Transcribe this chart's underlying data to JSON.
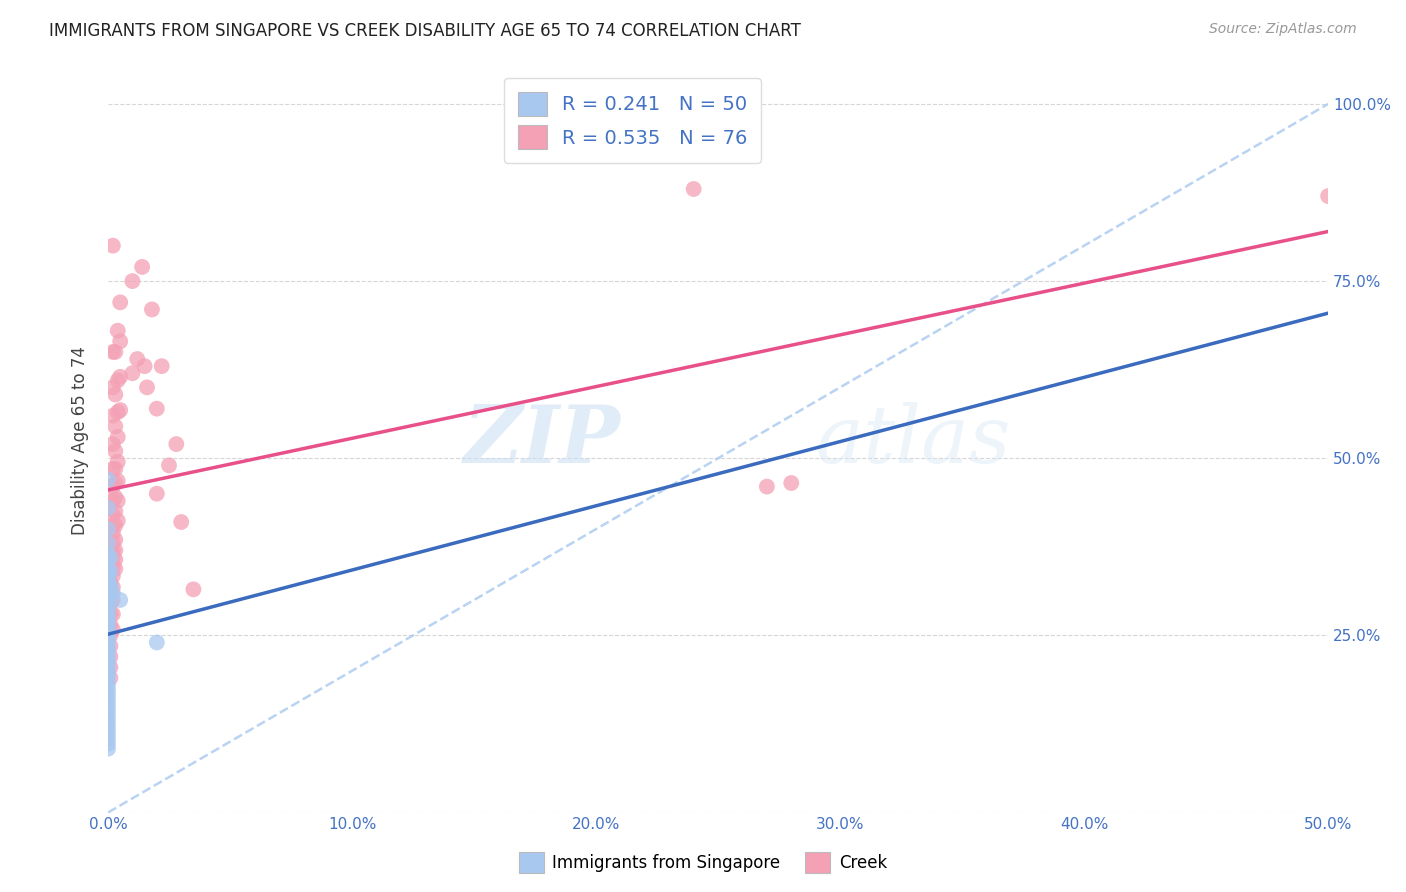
{
  "title": "IMMIGRANTS FROM SINGAPORE VS CREEK DISABILITY AGE 65 TO 74 CORRELATION CHART",
  "source": "Source: ZipAtlas.com",
  "ylabel": "Disability Age 65 to 74",
  "xlim": [
    0.0,
    0.5
  ],
  "ylim": [
    0.0,
    1.05
  ],
  "x_ticks": [
    0.0,
    0.1,
    0.2,
    0.3,
    0.4,
    0.5
  ],
  "x_tick_labels": [
    "0.0%",
    "10.0%",
    "20.0%",
    "30.0%",
    "40.0%",
    "50.0%"
  ],
  "y_ticks": [
    0.0,
    0.25,
    0.5,
    0.75,
    1.0
  ],
  "y_tick_labels": [
    "",
    "25.0%",
    "50.0%",
    "75.0%",
    "100.0%"
  ],
  "singapore_color": "#a8c8f0",
  "creek_color": "#f4a0b5",
  "singapore_line_color": "#3a6bbf",
  "creek_line_color": "#e8508a",
  "dashed_line_color": "#a8c8f0",
  "R_singapore": 0.241,
  "N_singapore": 50,
  "R_creek": 0.535,
  "N_creek": 76,
  "watermark_zip": "ZIP",
  "watermark_atlas": "atlas",
  "legend_x_label": "Immigrants from Singapore",
  "legend_pink_label": "Creek",
  "singapore_points": [
    [
      0.0,
      0.47
    ],
    [
      0.0,
      0.43
    ],
    [
      0.0,
      0.4
    ],
    [
      0.0,
      0.38
    ],
    [
      0.0,
      0.365
    ],
    [
      0.0,
      0.355
    ],
    [
      0.0,
      0.345
    ],
    [
      0.0,
      0.34
    ],
    [
      0.0,
      0.335
    ],
    [
      0.0,
      0.328
    ],
    [
      0.0,
      0.322
    ],
    [
      0.0,
      0.315
    ],
    [
      0.0,
      0.308
    ],
    [
      0.0,
      0.3
    ],
    [
      0.0,
      0.293
    ],
    [
      0.0,
      0.286
    ],
    [
      0.0,
      0.279
    ],
    [
      0.0,
      0.272
    ],
    [
      0.0,
      0.265
    ],
    [
      0.0,
      0.258
    ],
    [
      0.0,
      0.251
    ],
    [
      0.0,
      0.244
    ],
    [
      0.0,
      0.237
    ],
    [
      0.0,
      0.23
    ],
    [
      0.0,
      0.223
    ],
    [
      0.0,
      0.216
    ],
    [
      0.0,
      0.209
    ],
    [
      0.0,
      0.202
    ],
    [
      0.0,
      0.195
    ],
    [
      0.0,
      0.188
    ],
    [
      0.0,
      0.181
    ],
    [
      0.0,
      0.174
    ],
    [
      0.0,
      0.167
    ],
    [
      0.0,
      0.16
    ],
    [
      0.0,
      0.153
    ],
    [
      0.0,
      0.146
    ],
    [
      0.0,
      0.139
    ],
    [
      0.0,
      0.132
    ],
    [
      0.0,
      0.125
    ],
    [
      0.0,
      0.118
    ],
    [
      0.0,
      0.111
    ],
    [
      0.0,
      0.104
    ],
    [
      0.0,
      0.097
    ],
    [
      0.0,
      0.09
    ],
    [
      0.001,
      0.36
    ],
    [
      0.001,
      0.34
    ],
    [
      0.001,
      0.32
    ],
    [
      0.002,
      0.31
    ],
    [
      0.005,
      0.3
    ],
    [
      0.02,
      0.24
    ]
  ],
  "creek_points": [
    [
      0.001,
      0.37
    ],
    [
      0.001,
      0.35
    ],
    [
      0.001,
      0.34
    ],
    [
      0.001,
      0.325
    ],
    [
      0.001,
      0.31
    ],
    [
      0.001,
      0.295
    ],
    [
      0.001,
      0.28
    ],
    [
      0.001,
      0.265
    ],
    [
      0.001,
      0.25
    ],
    [
      0.001,
      0.235
    ],
    [
      0.001,
      0.22
    ],
    [
      0.001,
      0.205
    ],
    [
      0.001,
      0.19
    ],
    [
      0.002,
      0.8
    ],
    [
      0.002,
      0.65
    ],
    [
      0.002,
      0.6
    ],
    [
      0.002,
      0.56
    ],
    [
      0.002,
      0.52
    ],
    [
      0.002,
      0.485
    ],
    [
      0.002,
      0.46
    ],
    [
      0.002,
      0.44
    ],
    [
      0.002,
      0.42
    ],
    [
      0.002,
      0.405
    ],
    [
      0.002,
      0.395
    ],
    [
      0.002,
      0.382
    ],
    [
      0.002,
      0.37
    ],
    [
      0.002,
      0.358
    ],
    [
      0.002,
      0.346
    ],
    [
      0.002,
      0.334
    ],
    [
      0.002,
      0.318
    ],
    [
      0.002,
      0.3
    ],
    [
      0.002,
      0.28
    ],
    [
      0.002,
      0.258
    ],
    [
      0.003,
      0.65
    ],
    [
      0.003,
      0.59
    ],
    [
      0.003,
      0.545
    ],
    [
      0.003,
      0.51
    ],
    [
      0.003,
      0.485
    ],
    [
      0.003,
      0.465
    ],
    [
      0.003,
      0.445
    ],
    [
      0.003,
      0.425
    ],
    [
      0.003,
      0.405
    ],
    [
      0.003,
      0.385
    ],
    [
      0.003,
      0.37
    ],
    [
      0.003,
      0.357
    ],
    [
      0.003,
      0.344
    ],
    [
      0.004,
      0.68
    ],
    [
      0.004,
      0.61
    ],
    [
      0.004,
      0.565
    ],
    [
      0.004,
      0.53
    ],
    [
      0.004,
      0.495
    ],
    [
      0.004,
      0.468
    ],
    [
      0.004,
      0.44
    ],
    [
      0.004,
      0.412
    ],
    [
      0.005,
      0.72
    ],
    [
      0.005,
      0.665
    ],
    [
      0.005,
      0.615
    ],
    [
      0.005,
      0.568
    ],
    [
      0.01,
      0.75
    ],
    [
      0.01,
      0.62
    ],
    [
      0.012,
      0.64
    ],
    [
      0.014,
      0.77
    ],
    [
      0.015,
      0.63
    ],
    [
      0.016,
      0.6
    ],
    [
      0.018,
      0.71
    ],
    [
      0.02,
      0.57
    ],
    [
      0.02,
      0.45
    ],
    [
      0.022,
      0.63
    ],
    [
      0.025,
      0.49
    ],
    [
      0.028,
      0.52
    ],
    [
      0.03,
      0.41
    ],
    [
      0.035,
      0.315
    ],
    [
      0.24,
      0.88
    ],
    [
      0.27,
      0.46
    ],
    [
      0.28,
      0.465
    ],
    [
      0.5,
      0.87
    ]
  ]
}
